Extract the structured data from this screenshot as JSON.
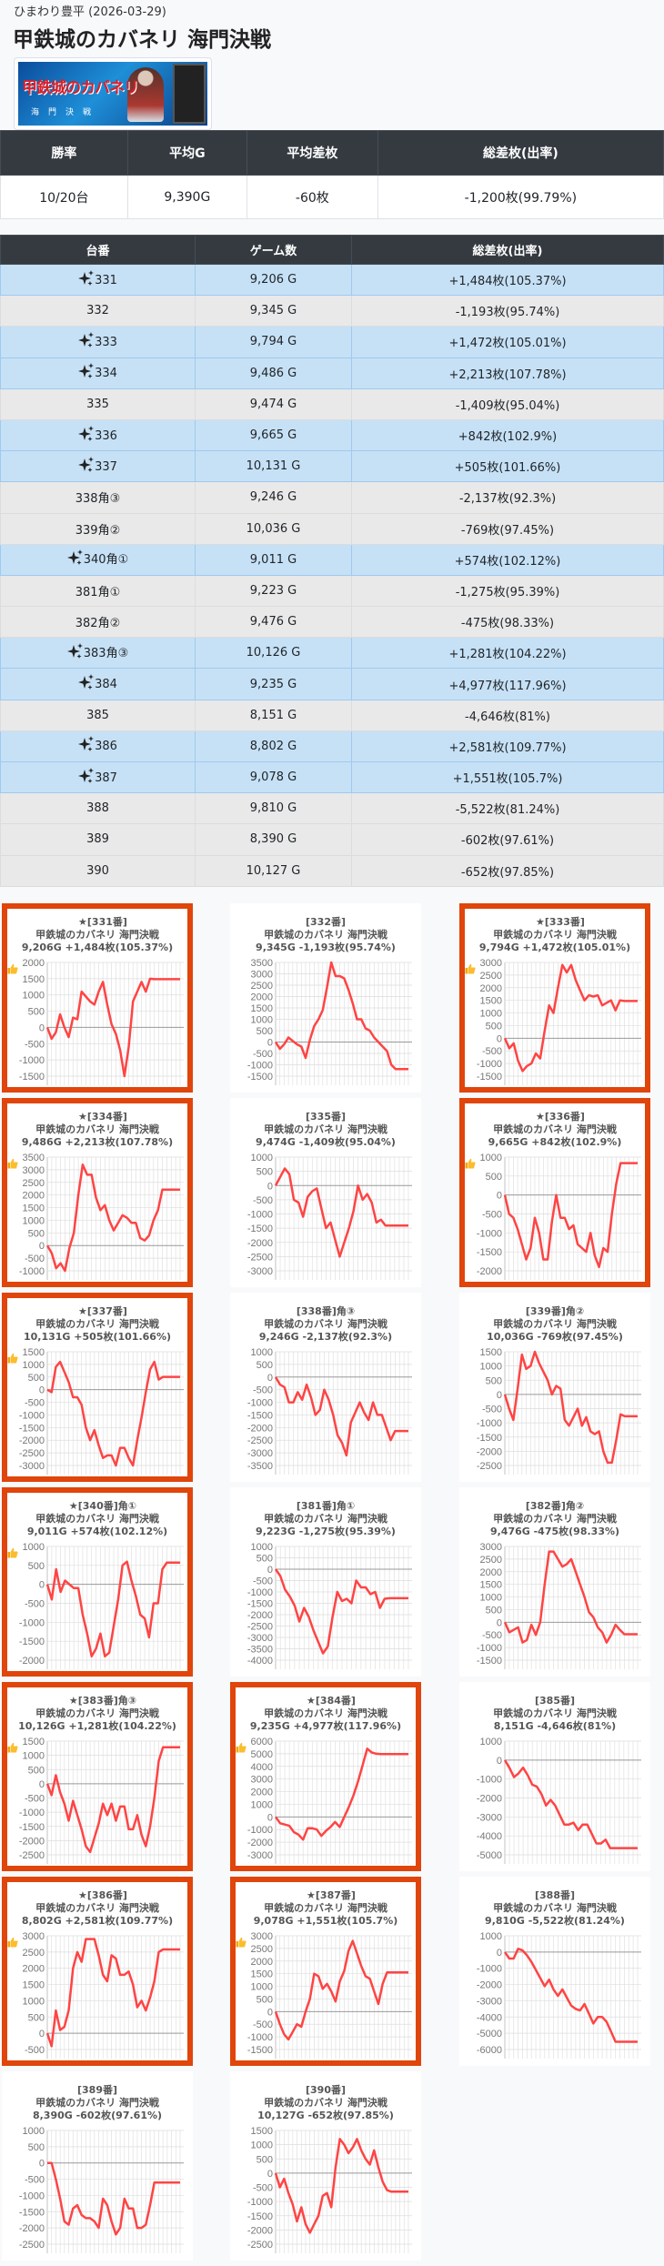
{
  "store": "ひまわり豊平 (2026-03-29)",
  "title": "甲鉄城のカバネリ 海門決戦",
  "banner": {
    "logo_text": "甲鉄城のカバネリ",
    "sub_text": "海門決戦"
  },
  "summary": {
    "headers": [
      "勝率",
      "平均G",
      "平均差枚",
      "総差枚(出率)"
    ],
    "values": [
      "10/20台",
      "9,390G",
      "-60枚",
      "-1,200枚(99.79%)"
    ]
  },
  "machines": {
    "headers": [
      "台番",
      "ゲーム数",
      "総差枚(出率)"
    ],
    "rows": [
      {
        "no": "331",
        "games": "9,206 G",
        "diff": "+1,484枚(105.37%)",
        "plus": true
      },
      {
        "no": "332",
        "games": "9,345 G",
        "diff": "-1,193枚(95.74%)",
        "plus": false
      },
      {
        "no": "333",
        "games": "9,794 G",
        "diff": "+1,472枚(105.01%)",
        "plus": true
      },
      {
        "no": "334",
        "games": "9,486 G",
        "diff": "+2,213枚(107.78%)",
        "plus": true
      },
      {
        "no": "335",
        "games": "9,474 G",
        "diff": "-1,409枚(95.04%)",
        "plus": false
      },
      {
        "no": "336",
        "games": "9,665 G",
        "diff": "+842枚(102.9%)",
        "plus": true
      },
      {
        "no": "337",
        "games": "10,131 G",
        "diff": "+505枚(101.66%)",
        "plus": true
      },
      {
        "no": "338角③",
        "games": "9,246 G",
        "diff": "-2,137枚(92.3%)",
        "plus": false
      },
      {
        "no": "339角②",
        "games": "10,036 G",
        "diff": "-769枚(97.45%)",
        "plus": false
      },
      {
        "no": "340角①",
        "games": "9,011 G",
        "diff": "+574枚(102.12%)",
        "plus": true
      },
      {
        "no": "381角①",
        "games": "9,223 G",
        "diff": "-1,275枚(95.39%)",
        "plus": false
      },
      {
        "no": "382角②",
        "games": "9,476 G",
        "diff": "-475枚(98.33%)",
        "plus": false
      },
      {
        "no": "383角③",
        "games": "10,126 G",
        "diff": "+1,281枚(104.22%)",
        "plus": true
      },
      {
        "no": "384",
        "games": "9,235 G",
        "diff": "+4,977枚(117.96%)",
        "plus": true
      },
      {
        "no": "385",
        "games": "8,151 G",
        "diff": "-4,646枚(81%)",
        "plus": false
      },
      {
        "no": "386",
        "games": "8,802 G",
        "diff": "+2,581枚(109.77%)",
        "plus": true
      },
      {
        "no": "387",
        "games": "9,078 G",
        "diff": "+1,551枚(105.7%)",
        "plus": true
      },
      {
        "no": "388",
        "games": "9,810 G",
        "diff": "-5,522枚(81.24%)",
        "plus": false
      },
      {
        "no": "389",
        "games": "8,390 G",
        "diff": "-602枚(97.61%)",
        "plus": false
      },
      {
        "no": "390",
        "games": "10,127 G",
        "diff": "-652枚(97.85%)",
        "plus": false
      }
    ]
  },
  "colors": {
    "plus_row": "#c6e1f6",
    "minus_row": "#e9e9e9",
    "highlight": "#e0450b",
    "line": "#ff4444"
  },
  "chart_data": [
    {
      "type": "line",
      "good": true,
      "header": "★[331番]",
      "name": "甲鉄城のカバネリ 海門決戦",
      "stats": "9,206G +1,484枚(105.37%)",
      "ylim": [
        -1500,
        2000
      ],
      "step": 500,
      "values": [
        0,
        -350,
        -150,
        400,
        0,
        -300,
        300,
        250,
        1100,
        950,
        800,
        700,
        1100,
        1400,
        700,
        100,
        -200,
        -700,
        -1500,
        -600,
        800,
        1100,
        1400,
        1100,
        1500,
        1484,
        1484,
        1484,
        1484,
        1484,
        1484,
        1484
      ]
    },
    {
      "type": "line",
      "good": false,
      "header": "[332番]",
      "name": "甲鉄城のカバネリ 海門決戦",
      "stats": "9,345G -1,193枚(95.74%)",
      "ylim": [
        -1500,
        3500
      ],
      "step": 500,
      "values": [
        0,
        -300,
        -100,
        200,
        50,
        -100,
        -200,
        -700,
        100,
        700,
        1000,
        1400,
        2400,
        3500,
        2900,
        2900,
        2800,
        2300,
        1700,
        1000,
        1000,
        600,
        500,
        200,
        0,
        -200,
        -400,
        -1000,
        -1193,
        -1193,
        -1193,
        -1193
      ]
    },
    {
      "type": "line",
      "good": true,
      "header": "★[333番]",
      "name": "甲鉄城のカバネリ 海門決戦",
      "stats": "9,794G +1,472枚(105.01%)",
      "ylim": [
        -1500,
        3000
      ],
      "step": 500,
      "values": [
        0,
        -400,
        -200,
        -900,
        -1300,
        -1100,
        -1000,
        -600,
        -800,
        300,
        1300,
        1000,
        2000,
        2900,
        2600,
        2900,
        2300,
        1900,
        1500,
        1700,
        1650,
        1700,
        1300,
        1400,
        1500,
        1100,
        1500,
        1472,
        1472,
        1472,
        1472
      ]
    },
    {
      "type": "line",
      "good": true,
      "header": "★[334番]",
      "name": "甲鉄城のカバネリ 海門決戦",
      "stats": "9,486G +2,213枚(107.78%)",
      "ylim": [
        -1000,
        3500
      ],
      "step": 500,
      "values": [
        0,
        -300,
        -900,
        -700,
        -1000,
        -100,
        500,
        2000,
        3200,
        2800,
        2800,
        1900,
        1400,
        1600,
        1000,
        600,
        900,
        1200,
        1100,
        900,
        900,
        300,
        200,
        400,
        1000,
        1400,
        2213,
        2213,
        2213,
        2213,
        2213
      ]
    },
    {
      "type": "line",
      "good": false,
      "header": "[335番]",
      "name": "甲鉄城のカバネリ 海門決戦",
      "stats": "9,474G -1,409枚(95.04%)",
      "ylim": [
        -3000,
        1000
      ],
      "step": 500,
      "values": [
        0,
        300,
        600,
        400,
        -500,
        -600,
        -1100,
        -400,
        -200,
        -100,
        -800,
        -1500,
        -1300,
        -1900,
        -2500,
        -2000,
        -1500,
        -900,
        0,
        -500,
        -300,
        -600,
        -1300,
        -1200,
        -1409,
        -1409,
        -1409,
        -1409,
        -1409,
        -1409
      ]
    },
    {
      "type": "line",
      "good": true,
      "header": "★[336番]",
      "name": "甲鉄城のカバネリ 海門決戦",
      "stats": "9,665G +842枚(102.9%)",
      "ylim": [
        -2000,
        1000
      ],
      "step": 500,
      "values": [
        0,
        -500,
        -600,
        -900,
        -1300,
        -1700,
        -1400,
        -600,
        -1000,
        -1700,
        -1700,
        -700,
        0,
        -600,
        -600,
        -900,
        -800,
        -1300,
        -1400,
        -1500,
        -1000,
        -1600,
        -1900,
        -1400,
        -1500,
        -500,
        300,
        842,
        842,
        842,
        842,
        842
      ]
    },
    {
      "type": "line",
      "good": true,
      "header": "★[337番]",
      "name": "甲鉄城のカバネリ 海門決戦",
      "stats": "10,131G +505枚(101.66%)",
      "ylim": [
        -3000,
        1500
      ],
      "step": 500,
      "values": [
        0,
        -100,
        900,
        1100,
        700,
        300,
        -300,
        -300,
        -600,
        -1500,
        -2000,
        -1600,
        -2200,
        -2700,
        -2600,
        -2600,
        -3000,
        -2300,
        -2300,
        -2700,
        -3000,
        -2000,
        -1100,
        -100,
        800,
        1100,
        400,
        505,
        505,
        505,
        505,
        505
      ]
    },
    {
      "type": "line",
      "good": false,
      "header": "[338番]角③",
      "name": "甲鉄城のカバネリ 海門決戦",
      "stats": "9,246G -2,137枚(92.3%)",
      "ylim": [
        -3500,
        1000
      ],
      "step": 500,
      "values": [
        0,
        -300,
        -400,
        -1000,
        -1000,
        -600,
        -900,
        -300,
        -800,
        -1500,
        -1300,
        -500,
        -900,
        -1500,
        -2300,
        -2600,
        -3100,
        -1800,
        -1400,
        -1000,
        -1400,
        -1700,
        -1000,
        -1500,
        -1500,
        -2000,
        -2500,
        -2137,
        -2137,
        -2137,
        -2137
      ]
    },
    {
      "type": "line",
      "good": false,
      "header": "[339番]角②",
      "name": "甲鉄城のカバネリ 海門決戦",
      "stats": "10,036G -769枚(97.45%)",
      "ylim": [
        -2500,
        1500
      ],
      "step": 500,
      "values": [
        0,
        -500,
        -900,
        200,
        1400,
        900,
        1000,
        1500,
        1100,
        800,
        500,
        0,
        300,
        200,
        -900,
        -1100,
        -800,
        -500,
        -1100,
        -800,
        -1300,
        -1400,
        -1300,
        -2000,
        -2400,
        -2400,
        -1600,
        -700,
        -769,
        -769,
        -769,
        -769
      ]
    },
    {
      "type": "line",
      "good": true,
      "header": "★[340番]角①",
      "name": "甲鉄城のカバネリ 海門決戦",
      "stats": "9,011G +574枚(102.12%)",
      "ylim": [
        -2000,
        1000
      ],
      "step": 500,
      "values": [
        0,
        -400,
        400,
        -200,
        100,
        0,
        -100,
        -100,
        -800,
        -1300,
        -1900,
        -1700,
        -1300,
        -1900,
        -1800,
        -1100,
        -400,
        500,
        600,
        100,
        -300,
        -800,
        -900,
        -1400,
        -500,
        -500,
        400,
        574,
        574,
        574,
        574
      ]
    },
    {
      "type": "line",
      "good": false,
      "header": "[381番]角①",
      "name": "甲鉄城のカバネリ 海門決戦",
      "stats": "9,223G -1,275枚(95.39%)",
      "ylim": [
        -4000,
        1000
      ],
      "step": 500,
      "values": [
        0,
        -300,
        -900,
        -1200,
        -1600,
        -2300,
        -1700,
        -2100,
        -2700,
        -3200,
        -3700,
        -3400,
        -2100,
        -1000,
        -1400,
        -1300,
        -1500,
        -500,
        -800,
        -800,
        -1100,
        -1000,
        -1700,
        -1300,
        -1275,
        -1275,
        -1275,
        -1275,
        -1275
      ]
    },
    {
      "type": "line",
      "good": false,
      "header": "[382番]角②",
      "name": "甲鉄城のカバネリ 海門決戦",
      "stats": "9,476G -475枚(98.33%)",
      "ylim": [
        -1500,
        3000
      ],
      "step": 500,
      "values": [
        0,
        -400,
        -300,
        -200,
        -800,
        -700,
        -100,
        -500,
        0,
        1500,
        2800,
        2800,
        2500,
        2200,
        2300,
        2500,
        2000,
        1500,
        1000,
        400,
        200,
        -200,
        -400,
        -800,
        -500,
        -100,
        -300,
        -475,
        -475,
        -475,
        -475
      ]
    },
    {
      "type": "line",
      "good": true,
      "header": "★[383番]角③",
      "name": "甲鉄城のカバネリ 海門決戦",
      "stats": "10,126G +1,281枚(104.22%)",
      "ylim": [
        -2500,
        1500
      ],
      "step": 500,
      "values": [
        0,
        -400,
        300,
        -300,
        -700,
        -1300,
        -600,
        -1100,
        -1600,
        -2200,
        -2400,
        -1900,
        -1400,
        -700,
        -1100,
        -700,
        -1300,
        -800,
        -800,
        -1600,
        -1600,
        -1100,
        -1800,
        -2200,
        -1500,
        -500,
        800,
        1281,
        1281,
        1281,
        1281,
        1281
      ]
    },
    {
      "type": "line",
      "good": true,
      "header": "★[384番]",
      "name": "甲鉄城のカバネリ 海門決戦",
      "stats": "9,235G +4,977枚(117.96%)",
      "ylim": [
        -3000,
        6000
      ],
      "step": 1000,
      "values": [
        0,
        -500,
        -600,
        -700,
        -1200,
        -1400,
        -1800,
        -900,
        -900,
        -1000,
        -1500,
        -1100,
        -800,
        -400,
        -800,
        0,
        800,
        1700,
        2800,
        4100,
        5400,
        5100,
        5000,
        4977,
        4977,
        4977,
        4977,
        4977,
        4977,
        4977
      ]
    },
    {
      "type": "line",
      "good": false,
      "header": "[385番]",
      "name": "甲鉄城のカバネリ 海門決戦",
      "stats": "8,151G -4,646枚(81%)",
      "ylim": [
        -5000,
        1000
      ],
      "step": 1000,
      "values": [
        0,
        -400,
        -900,
        -700,
        -400,
        -800,
        -1300,
        -1400,
        -1800,
        -2400,
        -2100,
        -2400,
        -2900,
        -3400,
        -3400,
        -3300,
        -3700,
        -3400,
        -3400,
        -3900,
        -4400,
        -4400,
        -4200,
        -4646,
        -4646,
        -4646,
        -4646,
        -4646,
        -4646,
        -4646
      ]
    },
    {
      "type": "line",
      "good": true,
      "header": "★[386番]",
      "name": "甲鉄城のカバネリ 海門決戦",
      "stats": "8,802G +2,581枚(109.77%)",
      "ylim": [
        -500,
        3000
      ],
      "step": 500,
      "values": [
        0,
        -400,
        700,
        100,
        200,
        700,
        2000,
        2500,
        2200,
        2900,
        2900,
        2900,
        2400,
        1800,
        1600,
        2400,
        2300,
        1800,
        1800,
        1900,
        1500,
        800,
        1000,
        700,
        1100,
        1600,
        2500,
        2581,
        2581,
        2581,
        2581,
        2581
      ]
    },
    {
      "type": "line",
      "good": true,
      "header": "★[387番]",
      "name": "甲鉄城のカバネリ 海門決戦",
      "stats": "9,078G +1,551枚(105.7%)",
      "ylim": [
        -1500,
        3000
      ],
      "step": 500,
      "values": [
        0,
        -500,
        -900,
        -1100,
        -800,
        -500,
        -600,
        0,
        500,
        1500,
        1400,
        900,
        1100,
        800,
        400,
        1200,
        1600,
        2400,
        2800,
        2300,
        1800,
        1400,
        1300,
        800,
        300,
        1100,
        1551,
        1551,
        1551,
        1551,
        1551,
        1551
      ]
    },
    {
      "type": "line",
      "good": false,
      "header": "[388番]",
      "name": "甲鉄城のカバネリ 海門決戦",
      "stats": "9,810G -5,522枚(81.24%)",
      "ylim": [
        -6000,
        1000
      ],
      "step": 1000,
      "values": [
        0,
        -400,
        -400,
        200,
        100,
        -200,
        -600,
        -1100,
        -1600,
        -2100,
        -1700,
        -2300,
        -2700,
        -2300,
        -2800,
        -3300,
        -3500,
        -3600,
        -3200,
        -3800,
        -4400,
        -4000,
        -4000,
        -4300,
        -4900,
        -5522,
        -5522,
        -5522,
        -5522,
        -5522,
        -5522
      ]
    },
    {
      "type": "line",
      "good": false,
      "header": "[389番]",
      "name": "甲鉄城のカバネリ 海門決戦",
      "stats": "8,390G -602枚(97.61%)",
      "ylim": [
        -2500,
        1000
      ],
      "step": 500,
      "values": [
        0,
        0,
        -500,
        -1100,
        -1800,
        -1900,
        -1400,
        -1300,
        -1600,
        -1700,
        -1700,
        -1800,
        -2000,
        -1100,
        -1300,
        -1800,
        -2200,
        -2000,
        -1100,
        -1400,
        -1400,
        -2000,
        -2000,
        -1900,
        -1300,
        -602,
        -602,
        -602,
        -602,
        -602,
        -602,
        -602
      ]
    },
    {
      "type": "line",
      "good": false,
      "header": "[390番]",
      "name": "甲鉄城のカバネリ 海門決戦",
      "stats": "10,127G -652枚(97.85%)",
      "ylim": [
        -2500,
        1500
      ],
      "step": 500,
      "values": [
        0,
        -500,
        -200,
        -700,
        -1100,
        -1700,
        -1200,
        -1800,
        -2100,
        -1800,
        -1500,
        -800,
        -700,
        -1200,
        200,
        1200,
        1000,
        700,
        900,
        1200,
        800,
        500,
        300,
        800,
        200,
        -300,
        -600,
        -652,
        -652,
        -652,
        -652,
        -652
      ]
    }
  ]
}
